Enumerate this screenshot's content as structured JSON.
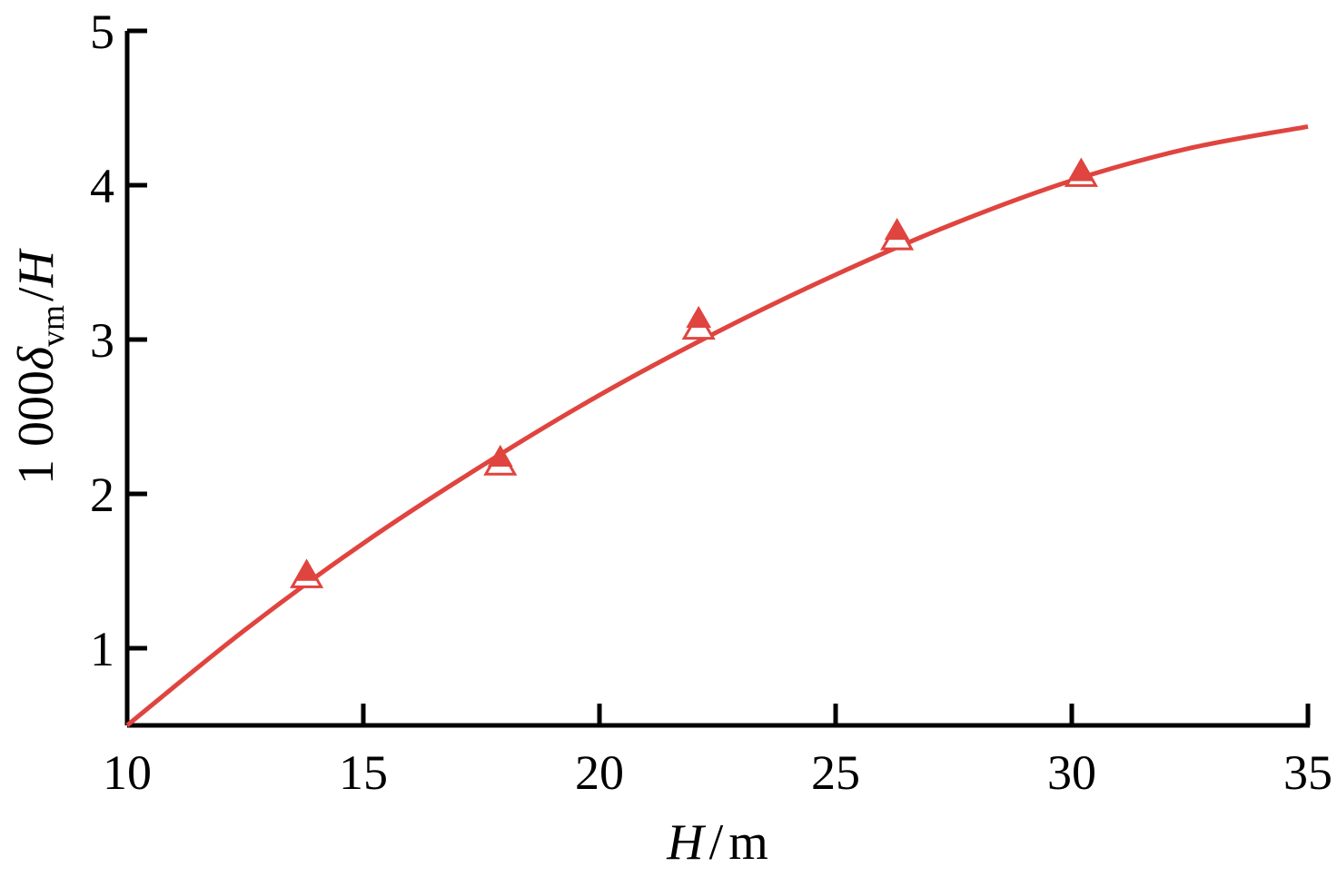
{
  "chart_data": {
    "type": "scatter",
    "title": "",
    "xlabel": {
      "var": "H",
      "sep": "/",
      "unit": "m"
    },
    "ylabel": {
      "prefix": "1 000",
      "symbol": "δ",
      "sub": "vm",
      "sep": "/",
      "var": "H"
    },
    "xlim": [
      10,
      35
    ],
    "ylim": [
      0.5,
      5
    ],
    "x_ticks": [
      10,
      15,
      20,
      25,
      30,
      35
    ],
    "y_ticks": [
      1,
      2,
      3,
      4,
      5
    ],
    "grid": false,
    "legend": "none",
    "color": "#e0443f",
    "series": [
      {
        "kind": "measured",
        "marker": "filled-triangle",
        "x": [
          13.8,
          17.9,
          22.1,
          26.3,
          30.2
        ],
        "y": [
          1.49,
          2.23,
          3.13,
          3.7,
          4.08
        ]
      },
      {
        "kind": "computed",
        "marker": "open-triangle",
        "x": [
          13.8,
          17.9,
          22.1,
          26.3,
          30.2
        ],
        "y": [
          1.46,
          2.19,
          3.07,
          3.65,
          4.06
        ]
      },
      {
        "kind": "fit",
        "marker": "line",
        "x": [
          10,
          12.5,
          15,
          17.5,
          20,
          22.5,
          25,
          27.5,
          30,
          32.5,
          35
        ],
        "y": [
          0.5,
          1.12,
          1.68,
          2.18,
          2.64,
          3.05,
          3.42,
          3.75,
          4.03,
          4.24,
          4.38
        ]
      }
    ]
  }
}
